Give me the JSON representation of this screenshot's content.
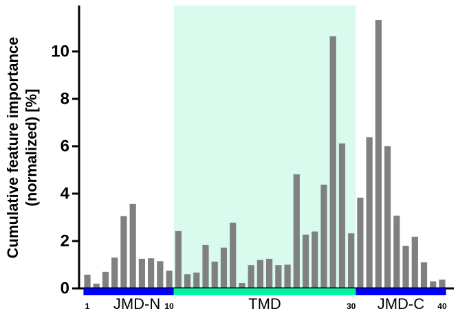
{
  "chart_data": {
    "type": "bar",
    "ylabel": [
      "Cumulative feature importance",
      "(normalized) [%]"
    ],
    "categories": [
      1,
      null,
      null,
      null,
      null,
      null,
      null,
      null,
      null,
      10,
      null,
      null,
      null,
      null,
      null,
      null,
      null,
      null,
      null,
      null,
      null,
      null,
      null,
      null,
      null,
      null,
      null,
      null,
      null,
      30,
      null,
      null,
      null,
      null,
      null,
      null,
      null,
      null,
      null,
      40
    ],
    "values": [
      0.58,
      0.2,
      0.7,
      1.3,
      3.05,
      3.57,
      1.25,
      1.27,
      1.15,
      0.75,
      2.43,
      0.6,
      0.67,
      1.83,
      1.13,
      1.72,
      2.77,
      0.23,
      0.98,
      1.2,
      1.25,
      0.98,
      1.0,
      4.82,
      2.27,
      2.4,
      4.38,
      10.64,
      6.12,
      2.33,
      3.83,
      6.38,
      11.33,
      6.0,
      3.07,
      1.8,
      2.18,
      1.1,
      0.3,
      0.37
    ],
    "color": "#808080",
    "ylim": [
      0,
      11.94
    ],
    "yticks": [
      0,
      2,
      4,
      6,
      8,
      10
    ],
    "regions": [
      {
        "name": "JMD-N",
        "start": 1,
        "end": 10,
        "color": "#0000ff"
      },
      {
        "name": "TMD",
        "start": 11,
        "end": 30,
        "color": "#00f5a0",
        "shade": "#d9fbee"
      },
      {
        "name": "JMD-C",
        "start": 31,
        "end": 40,
        "color": "#0000ff"
      }
    ]
  }
}
